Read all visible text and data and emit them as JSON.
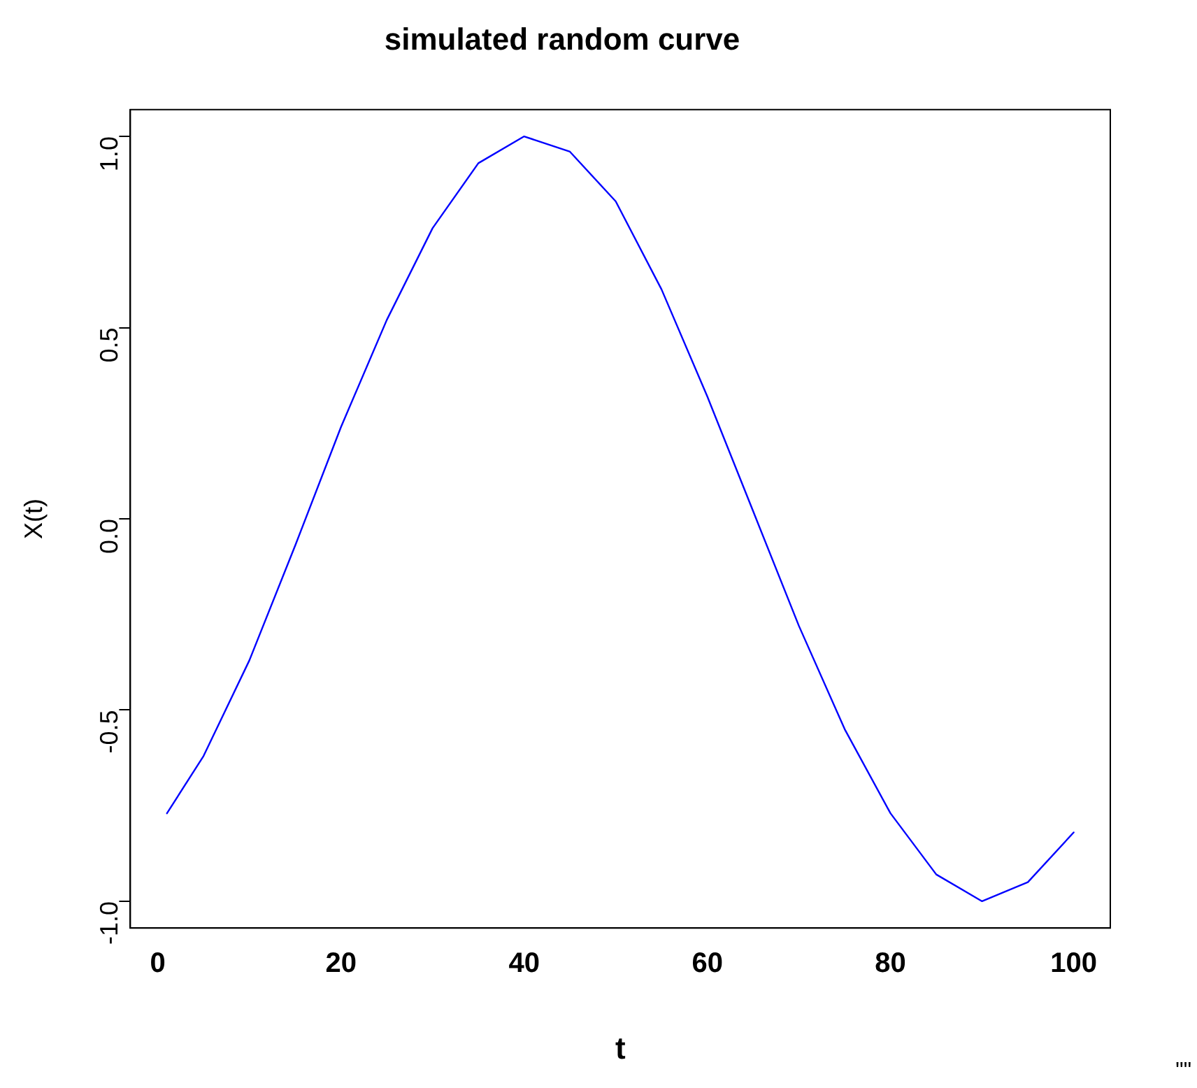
{
  "chart_data": {
    "type": "line",
    "title": "simulated random curve",
    "xlabel": "t",
    "ylabel": "X(t)",
    "annotations": [
      "\"\""
    ],
    "x": [
      1,
      5,
      10,
      15,
      20,
      25,
      30,
      35,
      40,
      45,
      50,
      55,
      60,
      65,
      70,
      75,
      80,
      85,
      90,
      95,
      100
    ],
    "series": [
      {
        "color": "#0000ff",
        "values": [
          -0.77,
          -0.62,
          -0.37,
          -0.07,
          0.24,
          0.52,
          0.76,
          0.93,
          1.0,
          0.96,
          0.83,
          0.6,
          0.32,
          0.02,
          -0.28,
          -0.55,
          -0.77,
          -0.93,
          -1.0,
          -0.95,
          -0.82
        ]
      }
    ],
    "xlim": [
      -3,
      104
    ],
    "ylim": [
      -1.07,
      1.07
    ],
    "xticks": [
      0,
      20,
      40,
      60,
      80,
      100
    ],
    "yticks": [
      {
        "value": -1,
        "label": "-1.0"
      },
      {
        "value": -0.5,
        "label": "-0.5"
      },
      {
        "value": 0,
        "label": "0.0"
      },
      {
        "value": 0.5,
        "label": "0.5"
      },
      {
        "value": 1,
        "label": "1.0"
      }
    ],
    "grid": false,
    "legend": false,
    "marker": "none",
    "line_style": "solid"
  }
}
